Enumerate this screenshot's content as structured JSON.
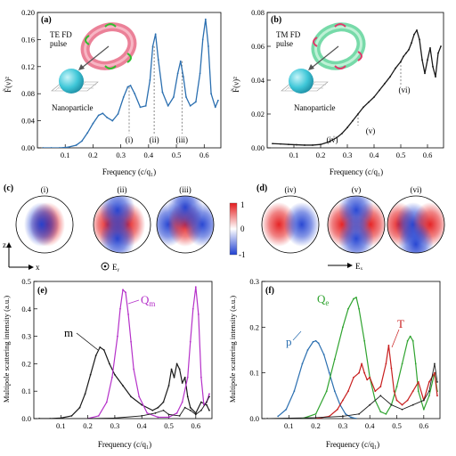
{
  "colors": {
    "blue_curve": "#2b6fb0",
    "black_curve": "#1a1a1a",
    "magenta": "#b531c9",
    "green": "#2fa32f",
    "red": "#c81e1e",
    "torus_te": "#e86b86",
    "torus_tm": "#5fd39a",
    "sphere": "#3fc7d8",
    "map_positive": "#e41a1c",
    "map_negative": "#1f3fd1"
  },
  "panel_a": {
    "tag": "(a)",
    "inset": {
      "pulse_line1": "TE FD",
      "pulse_line2": "pulse",
      "particle_label": "Nanoparticle"
    },
    "markers": [
      "(i)",
      "(ii)",
      "(iii)"
    ],
    "xtick_labels": [
      "0.1",
      "0.2",
      "0.3",
      "0.4",
      "0.5",
      "0.6"
    ],
    "ytick_labels": [
      "0.00",
      "0.04",
      "0.08",
      "0.12",
      "0.16",
      "0.20"
    ],
    "xlabel": "Frequency (c/q₁)",
    "ylabel": "F̃(ν)²"
  },
  "panel_b": {
    "tag": "(b)",
    "inset": {
      "pulse_line1": "TM FD",
      "pulse_line2": "pulse",
      "particle_label": "Nanoparticle"
    },
    "markers": [
      "(iv)",
      "(v)",
      "(vi)"
    ],
    "xtick_labels": [
      "0.1",
      "0.2",
      "0.3",
      "0.4",
      "0.5",
      "0.6"
    ],
    "ytick_labels": [
      "0.00",
      "0.02",
      "0.04",
      "0.06",
      "0.08"
    ],
    "xlabel": "Frequency (c/q₁)",
    "ylabel": "F̃(ν)²"
  },
  "panel_c": {
    "tag": "(c)",
    "labels": [
      "(i)",
      "(ii)",
      "(iii)"
    ],
    "axis_z": "z",
    "axis_x": "x",
    "field": "Eᵧ"
  },
  "panel_d": {
    "tag": "(d)",
    "labels": [
      "(iv)",
      "(v)",
      "(vi)"
    ],
    "field": "Eₓ"
  },
  "colorbar": {
    "max_label": "1",
    "mid_label": "0",
    "min_label": "-1"
  },
  "panel_e": {
    "tag": "(e)",
    "xtick_labels": [
      "0.1",
      "0.2",
      "0.3",
      "0.4",
      "0.5",
      "0.6"
    ],
    "ytick_labels": [
      "0.0",
      "0.1",
      "0.2",
      "0.3",
      "0.4",
      "0.5"
    ],
    "xlabel": "Frequency (c/q₁)",
    "ylabel": "Multipole scattering intensity (a.u.)",
    "label_m": "m",
    "label_Q": "Q",
    "label_Q_sub": "m"
  },
  "panel_f": {
    "tag": "(f)",
    "xtick_labels": [
      "0.1",
      "0.2",
      "0.3",
      "0.4",
      "0.5",
      "0.6"
    ],
    "ytick_labels": [
      "0.0",
      "0.1",
      "0.2",
      "0.3"
    ],
    "xlabel": "Frequency (c/q₁)",
    "ylabel": "Multipole scattering intensity (a.u.)",
    "label_p": "p",
    "label_Q": "Q",
    "label_Q_sub": "e",
    "label_T": "T"
  },
  "chart_data": [
    {
      "type": "line",
      "panel": "a",
      "xlabel": "Frequency (c/q₁)",
      "ylabel": "F̃(ν)²",
      "xlim": [
        0.0,
        0.66
      ],
      "ylim": [
        0.0,
        0.2
      ],
      "series": [
        {
          "x": [
            0.02,
            0.05,
            0.08,
            0.11,
            0.14,
            0.16,
            0.18,
            0.2,
            0.22,
            0.235,
            0.25,
            0.27,
            0.29,
            0.31,
            0.325,
            0.335,
            0.35,
            0.37,
            0.39,
            0.405,
            0.415,
            0.425,
            0.435,
            0.45,
            0.47,
            0.49,
            0.505,
            0.515,
            0.525,
            0.535,
            0.55,
            0.57,
            0.585,
            0.595,
            0.605,
            0.615,
            0.625,
            0.64,
            0.65
          ],
          "y": [
            0.0,
            0.0,
            0.0,
            0.001,
            0.004,
            0.01,
            0.022,
            0.036,
            0.048,
            0.051,
            0.045,
            0.04,
            0.05,
            0.075,
            0.09,
            0.092,
            0.08,
            0.06,
            0.062,
            0.1,
            0.15,
            0.168,
            0.13,
            0.082,
            0.062,
            0.075,
            0.11,
            0.128,
            0.105,
            0.075,
            0.062,
            0.068,
            0.11,
            0.16,
            0.19,
            0.15,
            0.08,
            0.06,
            0.07
          ]
        }
      ],
      "markers_x": [
        0.33,
        0.42,
        0.52
      ]
    },
    {
      "type": "line",
      "panel": "b",
      "xlabel": "Frequency (c/q₁)",
      "ylabel": "F̃(ν)²",
      "xlim": [
        0.0,
        0.66
      ],
      "ylim": [
        0.0,
        0.08
      ],
      "series": [
        {
          "x": [
            0.02,
            0.05,
            0.08,
            0.11,
            0.14,
            0.17,
            0.2,
            0.23,
            0.26,
            0.28,
            0.3,
            0.32,
            0.34,
            0.36,
            0.38,
            0.4,
            0.42,
            0.44,
            0.46,
            0.48,
            0.5,
            0.51,
            0.52,
            0.53,
            0.54,
            0.55,
            0.56,
            0.57,
            0.58,
            0.59,
            0.6,
            0.61,
            0.62,
            0.63,
            0.64,
            0.65
          ],
          "y": [
            0.0025,
            0.0023,
            0.002,
            0.0018,
            0.0016,
            0.0016,
            0.002,
            0.0035,
            0.006,
            0.0085,
            0.012,
            0.016,
            0.02,
            0.024,
            0.027,
            0.03,
            0.034,
            0.038,
            0.042,
            0.047,
            0.051,
            0.054,
            0.056,
            0.058,
            0.062,
            0.067,
            0.0695,
            0.064,
            0.052,
            0.044,
            0.052,
            0.059,
            0.048,
            0.042,
            0.056,
            0.06
          ]
        }
      ],
      "markers_x": [
        0.25,
        0.34,
        0.5
      ]
    },
    {
      "type": "line",
      "panel": "e",
      "xlabel": "Frequency (c/q₁)",
      "ylabel": "Multipole scattering intensity (a.u.)",
      "xlim": [
        0.0,
        0.66
      ],
      "ylim": [
        0.0,
        0.5
      ],
      "series": [
        {
          "name": "m",
          "x": [
            0.02,
            0.06,
            0.1,
            0.14,
            0.17,
            0.19,
            0.21,
            0.23,
            0.245,
            0.26,
            0.28,
            0.3,
            0.33,
            0.36,
            0.4,
            0.44,
            0.46,
            0.48,
            0.5,
            0.51,
            0.52,
            0.53,
            0.54,
            0.55,
            0.56,
            0.57,
            0.58,
            0.6,
            0.62,
            0.64,
            0.65
          ],
          "y": [
            0.0,
            0.0,
            0.002,
            0.01,
            0.04,
            0.09,
            0.16,
            0.23,
            0.26,
            0.25,
            0.2,
            0.16,
            0.12,
            0.08,
            0.05,
            0.03,
            0.04,
            0.06,
            0.12,
            0.18,
            0.15,
            0.2,
            0.18,
            0.13,
            0.15,
            0.08,
            0.04,
            0.02,
            0.06,
            0.05,
            0.03
          ]
        },
        {
          "name": "Qm",
          "x": [
            0.2,
            0.24,
            0.27,
            0.29,
            0.31,
            0.32,
            0.33,
            0.34,
            0.35,
            0.36,
            0.37,
            0.39,
            0.42,
            0.46,
            0.5,
            0.53,
            0.55,
            0.57,
            0.58,
            0.59,
            0.6,
            0.61,
            0.62,
            0.63,
            0.64,
            0.65
          ],
          "y": [
            0.0,
            0.01,
            0.06,
            0.15,
            0.3,
            0.4,
            0.47,
            0.46,
            0.38,
            0.28,
            0.18,
            0.08,
            0.02,
            0.005,
            0.005,
            0.02,
            0.06,
            0.15,
            0.28,
            0.4,
            0.48,
            0.38,
            0.15,
            0.05,
            0.06,
            0.09
          ]
        },
        {
          "name": "other",
          "x": [
            0.02,
            0.2,
            0.3,
            0.4,
            0.45,
            0.48,
            0.5,
            0.54,
            0.56,
            0.58,
            0.6,
            0.62,
            0.64,
            0.65
          ],
          "y": [
            0.0,
            0.0,
            0.002,
            0.01,
            0.02,
            0.03,
            0.015,
            0.01,
            0.04,
            0.03,
            0.015,
            0.03,
            0.06,
            0.08
          ]
        }
      ]
    },
    {
      "type": "line",
      "panel": "f",
      "xlabel": "Frequency (c/q₁)",
      "ylabel": "Multipole scattering intensity (a.u.)",
      "xlim": [
        0.0,
        0.66
      ],
      "ylim": [
        0.0,
        0.3
      ],
      "series": [
        {
          "name": "p",
          "x": [
            0.06,
            0.09,
            0.12,
            0.15,
            0.17,
            0.19,
            0.2,
            0.21,
            0.23,
            0.25,
            0.27,
            0.29,
            0.31,
            0.33,
            0.35
          ],
          "y": [
            0.005,
            0.02,
            0.06,
            0.12,
            0.15,
            0.168,
            0.17,
            0.165,
            0.14,
            0.1,
            0.06,
            0.03,
            0.01,
            0.003,
            0.0
          ]
        },
        {
          "name": "Qe",
          "x": [
            0.15,
            0.2,
            0.24,
            0.27,
            0.3,
            0.32,
            0.34,
            0.35,
            0.36,
            0.38,
            0.4,
            0.42,
            0.44,
            0.46,
            0.48,
            0.5,
            0.52,
            0.54,
            0.55,
            0.56,
            0.57,
            0.58,
            0.6,
            0.62,
            0.64,
            0.65
          ],
          "y": [
            0.0,
            0.01,
            0.06,
            0.13,
            0.2,
            0.24,
            0.262,
            0.265,
            0.24,
            0.17,
            0.09,
            0.04,
            0.015,
            0.01,
            0.03,
            0.07,
            0.12,
            0.17,
            0.18,
            0.17,
            0.12,
            0.06,
            0.02,
            0.05,
            0.1,
            0.06
          ]
        },
        {
          "name": "T",
          "x": [
            0.2,
            0.25,
            0.28,
            0.3,
            0.32,
            0.34,
            0.36,
            0.37,
            0.38,
            0.39,
            0.4,
            0.42,
            0.44,
            0.46,
            0.47,
            0.48,
            0.49,
            0.5,
            0.52,
            0.54,
            0.56,
            0.58,
            0.6,
            0.62,
            0.64,
            0.65
          ],
          "y": [
            0.0,
            0.005,
            0.02,
            0.04,
            0.06,
            0.09,
            0.1,
            0.12,
            0.1,
            0.085,
            0.09,
            0.06,
            0.07,
            0.12,
            0.16,
            0.11,
            0.06,
            0.04,
            0.03,
            0.04,
            0.06,
            0.08,
            0.04,
            0.08,
            0.1,
            0.05
          ]
        },
        {
          "name": "other",
          "x": [
            0.02,
            0.2,
            0.3,
            0.36,
            0.4,
            0.44,
            0.48,
            0.52,
            0.56,
            0.6,
            0.62,
            0.64,
            0.65
          ],
          "y": [
            0.0,
            0.002,
            0.005,
            0.01,
            0.03,
            0.05,
            0.03,
            0.02,
            0.03,
            0.04,
            0.06,
            0.12,
            0.08
          ]
        }
      ]
    },
    {
      "type": "heatmap",
      "panel": "c",
      "maps": [
        {
          "label": "(i)",
          "lobes": [
            [
              0.55,
              0.5,
              1
            ],
            [
              0.45,
              0.5,
              -1
            ]
          ]
        },
        {
          "label": "(ii)",
          "lobes": [
            [
              0.25,
              0.5,
              1
            ],
            [
              0.6,
              0.5,
              1
            ],
            [
              0.42,
              0.25,
              -1
            ],
            [
              0.42,
              0.75,
              -1
            ]
          ]
        },
        {
          "label": "(iii)",
          "lobes": [
            [
              0.2,
              0.5,
              -1
            ],
            [
              0.5,
              0.5,
              1
            ],
            [
              0.8,
              0.5,
              -1
            ],
            [
              0.5,
              0.2,
              -1
            ]
          ]
        }
      ],
      "range": [
        -1,
        1
      ]
    },
    {
      "type": "heatmap",
      "panel": "d",
      "maps": [
        {
          "label": "(iv)",
          "lobes": [
            [
              0.3,
              0.5,
              1
            ],
            [
              0.7,
              0.5,
              -1
            ]
          ]
        },
        {
          "label": "(v)",
          "lobes": [
            [
              0.25,
              0.5,
              1
            ],
            [
              0.75,
              0.5,
              1
            ],
            [
              0.5,
              0.25,
              -1
            ],
            [
              0.5,
              0.75,
              -1
            ]
          ]
        },
        {
          "label": "(vi)",
          "lobes": [
            [
              0.2,
              0.5,
              1
            ],
            [
              0.45,
              0.5,
              -1
            ],
            [
              0.75,
              0.5,
              1
            ],
            [
              0.5,
              0.85,
              -1
            ]
          ]
        }
      ],
      "range": [
        -1,
        1
      ]
    }
  ]
}
